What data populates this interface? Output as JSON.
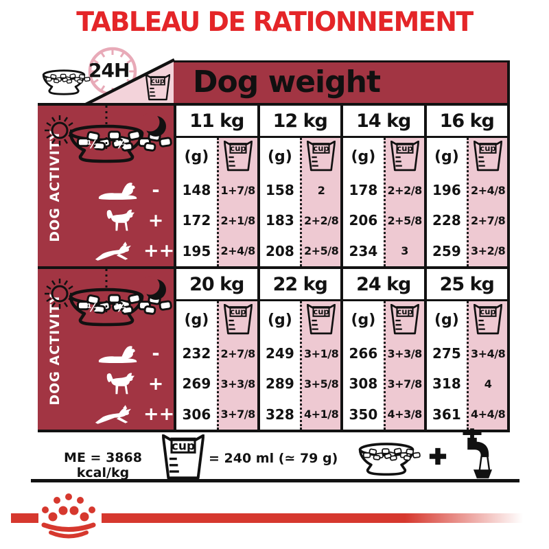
{
  "title": "TABLEAU DE RATIONNEMENT",
  "header": {
    "h24": "24H",
    "dog_weight": "Dog weight"
  },
  "activity": {
    "label": "DOG ACTIVITY",
    "bowl_half_left": "½",
    "bowl_half_right": "½",
    "levels": [
      {
        "symbol": "-"
      },
      {
        "symbol": "+"
      },
      {
        "symbol": "++"
      }
    ]
  },
  "table": {
    "unit_grams": "(g)",
    "cup_label": "cup",
    "blocks": [
      {
        "columns": [
          {
            "weight": "11 kg",
            "grams": [
              "148",
              "172",
              "195"
            ],
            "cups": [
              "1+7/8",
              "2+1/8",
              "2+4/8"
            ]
          },
          {
            "weight": "12 kg",
            "grams": [
              "158",
              "183",
              "208"
            ],
            "cups": [
              "2",
              "2+2/8",
              "2+5/8"
            ]
          },
          {
            "weight": "14 kg",
            "grams": [
              "178",
              "206",
              "234"
            ],
            "cups": [
              "2+2/8",
              "2+5/8",
              "3"
            ]
          },
          {
            "weight": "16 kg",
            "grams": [
              "196",
              "228",
              "259"
            ],
            "cups": [
              "2+4/8",
              "2+7/8",
              "3+2/8"
            ]
          }
        ]
      },
      {
        "columns": [
          {
            "weight": "20 kg",
            "grams": [
              "232",
              "269",
              "306"
            ],
            "cups": [
              "2+7/8",
              "3+3/8",
              "3+7/8"
            ]
          },
          {
            "weight": "22 kg",
            "grams": [
              "249",
              "289",
              "328"
            ],
            "cups": [
              "3+1/8",
              "3+5/8",
              "4+1/8"
            ]
          },
          {
            "weight": "24 kg",
            "grams": [
              "266",
              "308",
              "350"
            ],
            "cups": [
              "3+3/8",
              "3+7/8",
              "4+3/8"
            ]
          },
          {
            "weight": "25 kg",
            "grams": [
              "275",
              "318",
              "361"
            ],
            "cups": [
              "3+4/8",
              "4",
              "4+4/8"
            ]
          }
        ]
      }
    ]
  },
  "footer": {
    "me": "ME = 3868 kcal/kg",
    "cup_equiv": "= 240 ml (≃ 79 g)"
  },
  "colors": {
    "title_red": "#e42528",
    "dark_red": "#a23543",
    "cell_pink": "#eec9d2",
    "triangle_pink": "#f3d3da",
    "clock_pink": "#e8aab8",
    "logo_red": "#d6382e"
  }
}
